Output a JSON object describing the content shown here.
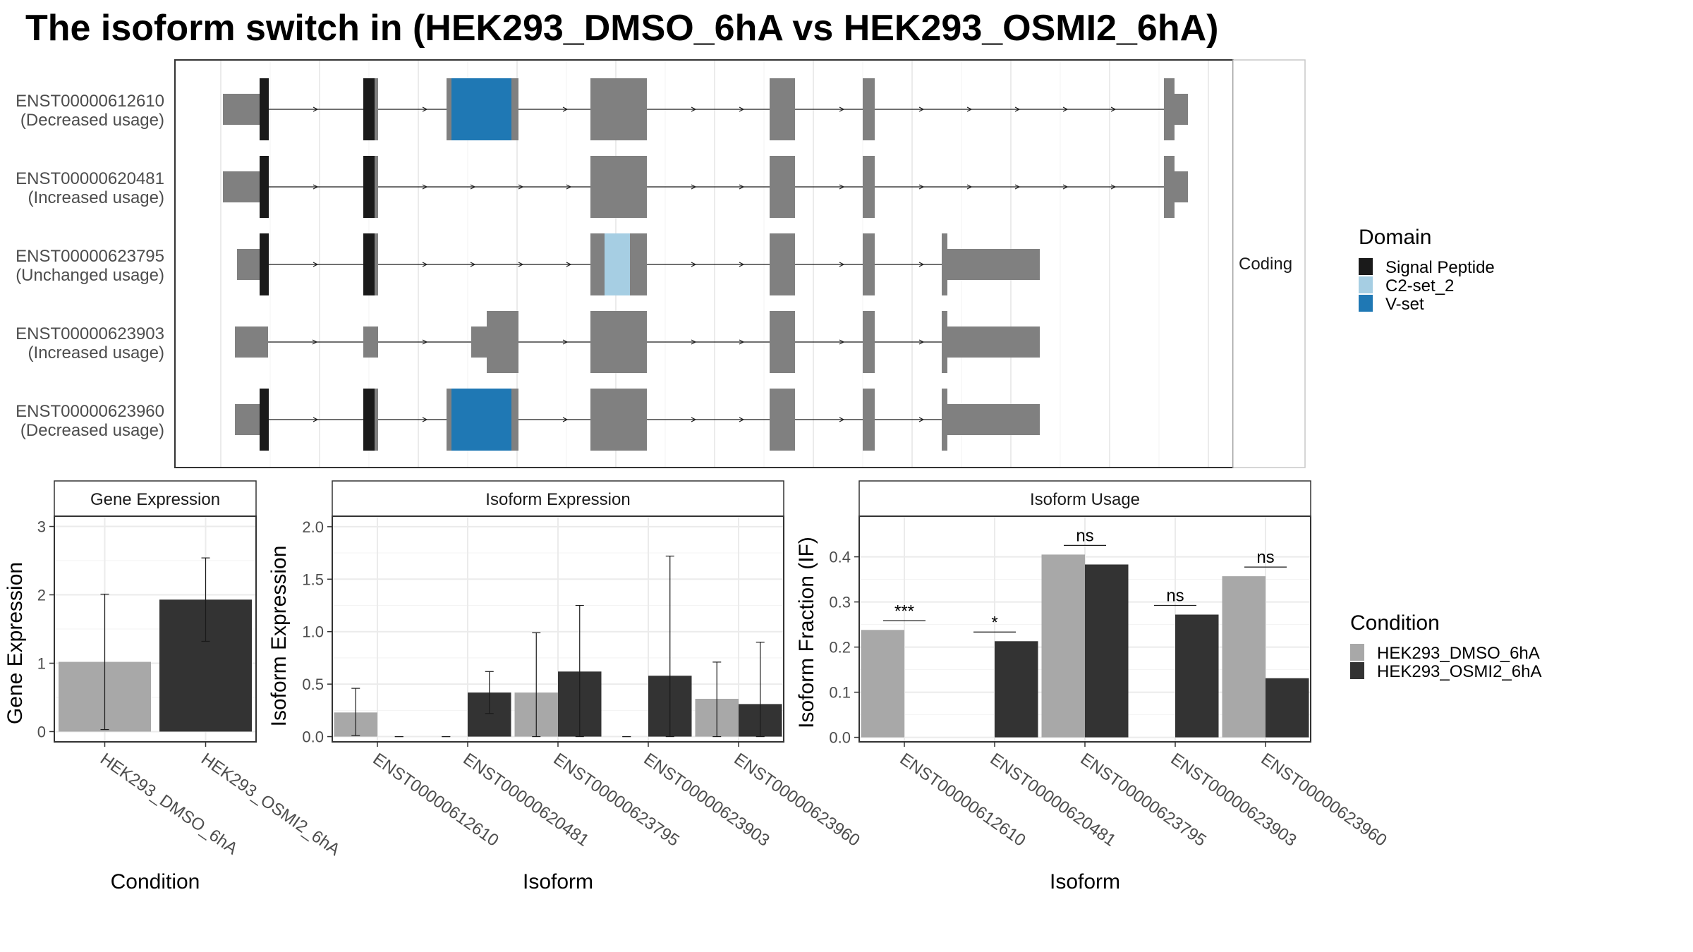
{
  "title": "The isoform switch in  (HEK293_DMSO_6hA vs HEK293_OSMI2_6hA)",
  "colors": {
    "exon": "#808080",
    "signal_peptide": "#1a1a1a",
    "c2_set_2": "#a6cee3",
    "v_set": "#1f78b4",
    "dmso": "#a8a8a8",
    "osmi2": "#333333",
    "grid": "#ebebeb",
    "frame": "#333333"
  },
  "structure": {
    "strip_label": "Coding",
    "transcripts": [
      {
        "id": "ENST00000612610",
        "status": "(Decreased usage)"
      },
      {
        "id": "ENST00000620481",
        "status": "(Increased usage)"
      },
      {
        "id": "ENST00000623795",
        "status": "(Unchanged usage)"
      },
      {
        "id": "ENST00000623903",
        "status": "(Increased usage)"
      },
      {
        "id": "ENST00000623960",
        "status": "(Decreased usage)"
      }
    ]
  },
  "domain_legend": {
    "title": "Domain",
    "items": [
      {
        "label": "Signal Peptide",
        "color": "#1a1a1a"
      },
      {
        "label": "C2-set_2",
        "color": "#a6cee3"
      },
      {
        "label": "V-set",
        "color": "#1f78b4"
      }
    ]
  },
  "condition_legend": {
    "title": "Condition",
    "items": [
      {
        "label": "HEK293_DMSO_6hA",
        "color": "#a8a8a8"
      },
      {
        "label": "HEK293_OSMI2_6hA",
        "color": "#333333"
      }
    ]
  },
  "chart_data": [
    {
      "type": "bar",
      "title": "Gene Expression",
      "xlabel": "Condition",
      "ylabel": "Gene Expression",
      "categories": [
        "HEK293_DMSO_6hA",
        "HEK293_OSMI2_6hA"
      ],
      "values": [
        1.02,
        1.93
      ],
      "error_low": [
        0.03,
        1.32
      ],
      "error_high": [
        2.01,
        2.54
      ],
      "ylim": [
        -0.15,
        3.15
      ],
      "yticks": [
        "0",
        "1",
        "2",
        "3"
      ],
      "grid": true
    },
    {
      "type": "bar",
      "title": "Isoform Expression",
      "xlabel": "Isoform",
      "ylabel": "Isoform Expression",
      "categories": [
        "ENST00000612610",
        "ENST00000620481",
        "ENST00000623795",
        "ENST00000623903",
        "ENST00000623960"
      ],
      "series": [
        {
          "name": "HEK293_DMSO_6hA",
          "values": [
            0.23,
            0.0,
            0.42,
            0.0,
            0.36
          ],
          "error_low": [
            0.01,
            0.0,
            0.0,
            0.0,
            0.0
          ],
          "error_high": [
            0.46,
            0.0,
            0.99,
            0.0,
            0.71
          ]
        },
        {
          "name": "HEK293_OSMI2_6hA",
          "values": [
            0.0,
            0.42,
            0.62,
            0.58,
            0.31
          ],
          "error_low": [
            0.0,
            0.22,
            0.0,
            0.0,
            0.0
          ],
          "error_high": [
            0.0,
            0.62,
            1.25,
            1.72,
            0.9
          ]
        }
      ],
      "ylim": [
        -0.05,
        2.1
      ],
      "yticks": [
        "0.0",
        "0.5",
        "1.0",
        "1.5",
        "2.0"
      ],
      "grid": true
    },
    {
      "type": "bar",
      "title": "Isoform Usage",
      "xlabel": "Isoform",
      "ylabel": "Isoform Fraction (IF)",
      "categories": [
        "ENST00000612610",
        "ENST00000620481",
        "ENST00000623795",
        "ENST00000623903",
        "ENST00000623960"
      ],
      "series": [
        {
          "name": "HEK293_DMSO_6hA",
          "values": [
            0.238,
            0.0,
            0.405,
            0.0,
            0.357
          ]
        },
        {
          "name": "HEK293_OSMI2_6hA",
          "values": [
            0.0,
            0.213,
            0.383,
            0.272,
            0.131
          ]
        }
      ],
      "significance": [
        "***",
        "*",
        "ns",
        "ns",
        "ns"
      ],
      "ylim": [
        -0.01,
        0.49
      ],
      "yticks": [
        "0.0",
        "0.1",
        "0.2",
        "0.3",
        "0.4"
      ],
      "grid": true
    }
  ]
}
